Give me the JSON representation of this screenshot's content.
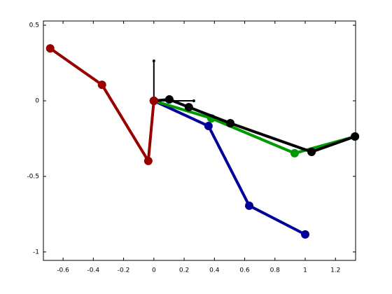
{
  "chart_data": {
    "type": "line",
    "xlim": [
      -0.73,
      1.333
    ],
    "ylim": [
      -1.056,
      0.528
    ],
    "xticks": [
      -0.6,
      -0.4,
      -0.2,
      0,
      0.2,
      0.4,
      0.6,
      0.8,
      1,
      1.2
    ],
    "yticks": [
      0.5,
      0,
      -0.5,
      -1
    ],
    "series": [
      {
        "color": "#000000",
        "line_width": 2,
        "marker_size": 2,
        "x": [
          0,
          0
        ],
        "y": [
          0,
          0.264
        ]
      },
      {
        "color": "#000000",
        "line_width": 2,
        "marker_size": 2,
        "x": [
          0,
          0.264
        ],
        "y": [
          0,
          0
        ]
      },
      {
        "color": "#000099",
        "line_width": 4,
        "marker_size": 6,
        "x": [
          0,
          0.361,
          0.63,
          1.0
        ],
        "y": [
          0,
          -0.167,
          -0.694,
          -0.884
        ]
      },
      {
        "color": "#009900",
        "line_width": 4,
        "marker_size": 6,
        "x": [
          0,
          0.38,
          0.93,
          1.329
        ],
        "y": [
          0,
          -0.116,
          -0.347,
          -0.236
        ]
      },
      {
        "color": "#000000",
        "line_width": 4,
        "marker_size": 6,
        "x": [
          0,
          0.102,
          0.231,
          0.505,
          1.042,
          1.329
        ],
        "y": [
          0,
          0.009,
          -0.042,
          -0.148,
          -0.338,
          -0.236
        ]
      },
      {
        "color": "#990000",
        "line_width": 4,
        "marker_size": 6,
        "x": [
          -0.685,
          -0.343,
          -0.037,
          0
        ],
        "y": [
          0.347,
          0.106,
          -0.398,
          0
        ]
      }
    ]
  }
}
